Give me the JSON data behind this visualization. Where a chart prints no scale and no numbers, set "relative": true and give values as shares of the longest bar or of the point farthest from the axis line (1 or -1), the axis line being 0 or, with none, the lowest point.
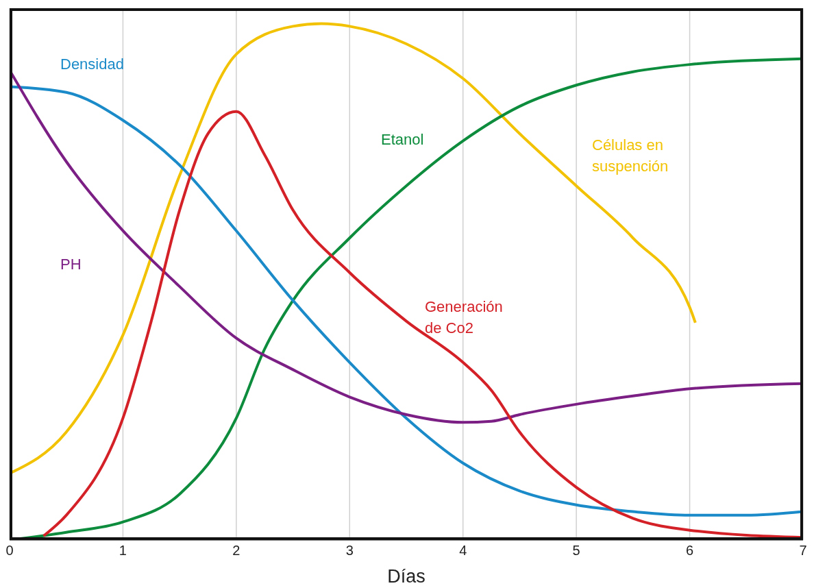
{
  "chart_data": {
    "type": "line",
    "xlabel": "Días",
    "relative": true,
    "xlim": [
      0,
      7
    ],
    "xticks": [
      0,
      1,
      2,
      3,
      4,
      5,
      6,
      7
    ],
    "grid": "x",
    "marker": "none",
    "line_style": "solid",
    "series": [
      {
        "name": "Células en suspención",
        "color": "#f2c200",
        "x": [
          0,
          0.5,
          1,
          1.5,
          2,
          2.5,
          2.75,
          3,
          3.5,
          4,
          4.5,
          5,
          5.5,
          6,
          6.05
        ],
        "values": [
          0.129,
          0.209,
          0.397,
          0.706,
          0.941,
          0.995,
          1,
          0.995,
          0.961,
          0.894,
          0.787,
          0.686,
          0.585,
          0.451,
          0.421
        ]
      },
      {
        "name": "Etanol",
        "color": "#0c8c3c",
        "x": [
          0,
          0.5,
          1,
          1.5,
          2,
          2.25,
          2.5,
          3,
          3.5,
          4,
          4.5,
          5,
          5.5,
          6,
          7
        ],
        "values": [
          0,
          0.015,
          0.035,
          0.089,
          0.236,
          0.37,
          0.464,
          0.585,
          0.686,
          0.773,
          0.84,
          0.881,
          0.907,
          0.921,
          0.932
        ]
      },
      {
        "name": "Densidad",
        "color": "#1a8ac8",
        "x": [
          0,
          0.5,
          1,
          1.5,
          2,
          2.5,
          3,
          3.5,
          4,
          4.5,
          5,
          5.5,
          6,
          6.5,
          7
        ],
        "values": [
          0.878,
          0.867,
          0.813,
          0.726,
          0.599,
          0.464,
          0.344,
          0.236,
          0.149,
          0.095,
          0.068,
          0.055,
          0.048,
          0.048,
          0.055
        ]
      },
      {
        "name": "PH",
        "color": "#7b1f85",
        "x": [
          0,
          0.5,
          1,
          1.5,
          2,
          2.5,
          3,
          3.5,
          4,
          4.25,
          4.5,
          5,
          5.5,
          6,
          7
        ],
        "values": [
          0.91,
          0.733,
          0.599,
          0.491,
          0.391,
          0.33,
          0.277,
          0.243,
          0.228,
          0.23,
          0.243,
          0.263,
          0.279,
          0.293,
          0.303
        ]
      },
      {
        "name": "Generación de Co2",
        "color": "#d42027",
        "x": [
          0.3,
          0.5,
          1,
          1.25,
          1.5,
          1.75,
          2,
          2.25,
          2.5,
          3,
          3.5,
          4,
          4.25,
          4.5,
          5,
          5.5,
          6,
          7
        ],
        "values": [
          0.008,
          0.048,
          0.236,
          0.424,
          0.639,
          0.787,
          0.83,
          0.746,
          0.639,
          0.518,
          0.424,
          0.344,
          0.29,
          0.209,
          0.102,
          0.042,
          0.019,
          0.005
        ]
      }
    ]
  }
}
